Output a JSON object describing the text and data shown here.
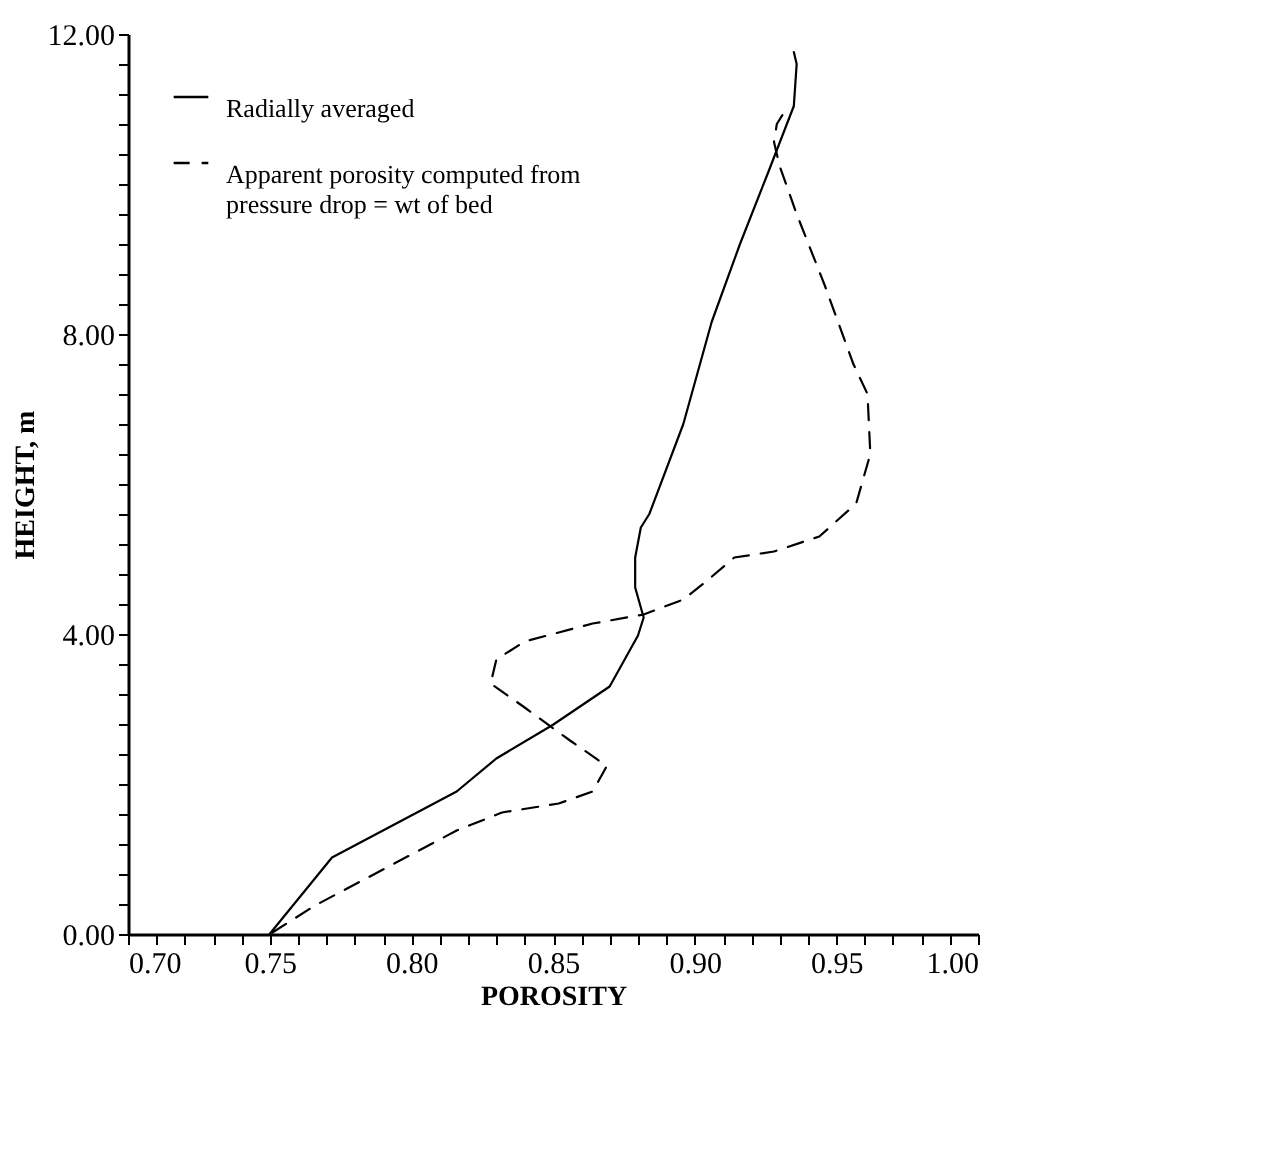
{
  "chart_data": {
    "type": "line",
    "xlabel": "POROSITY",
    "ylabel": "HEIGHT, m",
    "legend": "top left",
    "grid": false,
    "xlim": [
      0.7,
      1.0
    ],
    "ylim": [
      0,
      12
    ],
    "xticks": [
      {
        "value": 0.7,
        "label": "0.70"
      },
      {
        "value": 0.71,
        "label": null
      },
      {
        "value": 0.72,
        "label": null
      },
      {
        "value": 0.73,
        "label": null
      },
      {
        "value": 0.74,
        "label": null
      },
      {
        "value": 0.75,
        "label": "0.75"
      },
      {
        "value": 0.76,
        "label": null
      },
      {
        "value": 0.77,
        "label": null
      },
      {
        "value": 0.78,
        "label": null
      },
      {
        "value": 0.79,
        "label": null
      },
      {
        "value": 0.8,
        "label": "0.80"
      },
      {
        "value": 0.81,
        "label": null
      },
      {
        "value": 0.82,
        "label": null
      },
      {
        "value": 0.83,
        "label": null
      },
      {
        "value": 0.84,
        "label": null
      },
      {
        "value": 0.85,
        "label": "0.85"
      },
      {
        "value": 0.86,
        "label": null
      },
      {
        "value": 0.87,
        "label": null
      },
      {
        "value": 0.88,
        "label": null
      },
      {
        "value": 0.89,
        "label": null
      },
      {
        "value": 0.9,
        "label": "0.90"
      },
      {
        "value": 0.91,
        "label": null
      },
      {
        "value": 0.92,
        "label": null
      },
      {
        "value": 0.93,
        "label": null
      },
      {
        "value": 0.94,
        "label": null
      },
      {
        "value": 0.95,
        "label": "0.95"
      },
      {
        "value": 0.96,
        "label": null
      },
      {
        "value": 0.97,
        "label": null
      },
      {
        "value": 0.98,
        "label": null
      },
      {
        "value": 0.99,
        "label": null
      },
      {
        "value": 1.0,
        "label": "1.00"
      }
    ],
    "yticks": [
      {
        "value": 0,
        "label": "0.00"
      },
      {
        "value": 0.4,
        "label": null
      },
      {
        "value": 0.8,
        "label": null
      },
      {
        "value": 1.2,
        "label": null
      },
      {
        "value": 1.6,
        "label": null
      },
      {
        "value": 2.0,
        "label": null
      },
      {
        "value": 2.4,
        "label": null
      },
      {
        "value": 2.8,
        "label": null
      },
      {
        "value": 3.2,
        "label": null
      },
      {
        "value": 3.6,
        "label": null
      },
      {
        "value": 4,
        "label": "4.00"
      },
      {
        "value": 4.4,
        "label": null
      },
      {
        "value": 4.8,
        "label": null
      },
      {
        "value": 5.2,
        "label": null
      },
      {
        "value": 5.6,
        "label": null
      },
      {
        "value": 6.0,
        "label": null
      },
      {
        "value": 6.4,
        "label": null
      },
      {
        "value": 6.8,
        "label": null
      },
      {
        "value": 7.2,
        "label": null
      },
      {
        "value": 7.6,
        "label": null
      },
      {
        "value": 8,
        "label": "8.00"
      },
      {
        "value": 8.4,
        "label": null
      },
      {
        "value": 8.8,
        "label": null
      },
      {
        "value": 9.2,
        "label": null
      },
      {
        "value": 9.6,
        "label": null
      },
      {
        "value": 10.0,
        "label": null
      },
      {
        "value": 10.4,
        "label": null
      },
      {
        "value": 10.8,
        "label": null
      },
      {
        "value": 11.2,
        "label": null
      },
      {
        "value": 11.6,
        "label": null
      },
      {
        "value": 12,
        "label": "12.00"
      }
    ],
    "series": [
      {
        "name": "Radially averaged",
        "color": "#000000",
        "line_style": "solid",
        "x": [
          0.75,
          0.772,
          0.786,
          0.816,
          0.83,
          0.85,
          0.87,
          0.88,
          0.882,
          0.879,
          0.879,
          0.881,
          0.884,
          0.896,
          0.906,
          0.916,
          0.926,
          0.935,
          0.936,
          0.935
        ],
        "values": [
          0,
          1.02,
          1.3,
          1.9,
          2.34,
          2.79,
          3.3,
          3.98,
          4.22,
          4.62,
          5.02,
          5.42,
          5.6,
          6.8,
          8.16,
          9.2,
          10.16,
          11.04,
          11.6,
          11.76
        ]
      },
      {
        "name": "Apparent porosity computed from pressure drop = wt of bed",
        "color": "#000000",
        "line_style": "dashed",
        "x": [
          0.751,
          0.766,
          0.79,
          0.816,
          0.832,
          0.852,
          0.864,
          0.869,
          0.856,
          0.84,
          0.828,
          0.83,
          0.84,
          0.864,
          0.882,
          0.896,
          0.904,
          0.914,
          0.928,
          0.944,
          0.957,
          0.962,
          0.961,
          0.956,
          0.946,
          0.936,
          0.93,
          0.928,
          0.929,
          0.931
        ],
        "values": [
          0.02,
          0.38,
          0.86,
          1.38,
          1.62,
          1.74,
          1.9,
          2.24,
          2.58,
          3.02,
          3.34,
          3.66,
          3.9,
          4.14,
          4.26,
          4.46,
          4.7,
          5.02,
          5.1,
          5.3,
          5.74,
          6.4,
          7.2,
          7.6,
          8.64,
          9.6,
          10.24,
          10.56,
          10.8,
          10.92
        ]
      }
    ]
  }
}
